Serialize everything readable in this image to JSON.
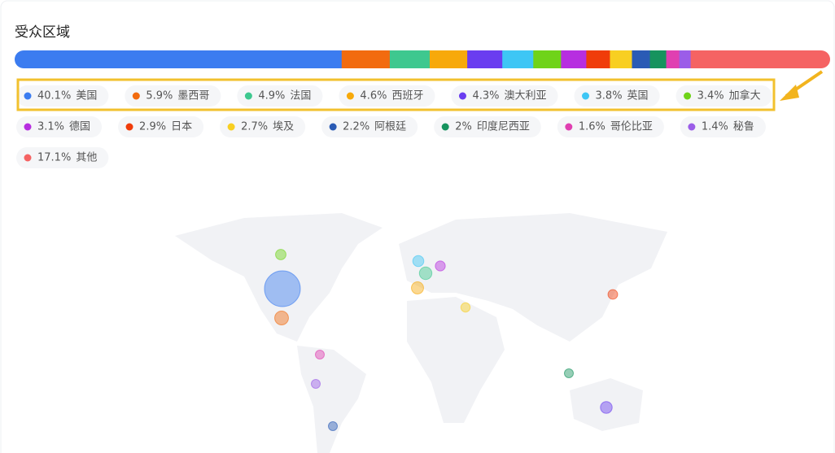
{
  "chart_data": {
    "type": "bar",
    "title": "受众区域",
    "categories": [
      "美国",
      "墨西哥",
      "法国",
      "西班牙",
      "澳大利亚",
      "英国",
      "加拿大",
      "德国",
      "日本",
      "埃及",
      "阿根廷",
      "印度尼西亚",
      "哥伦比亚",
      "秘鲁",
      "其他"
    ],
    "values": [
      40.1,
      5.9,
      4.9,
      4.6,
      4.3,
      3.8,
      3.4,
      3.1,
      2.9,
      2.7,
      2.2,
      2,
      1.6,
      1.4,
      17.1
    ],
    "value_labels": [
      "40.1%",
      "5.9%",
      "4.9%",
      "4.6%",
      "4.3%",
      "3.8%",
      "3.4%",
      "3.1%",
      "2.9%",
      "2.7%",
      "2.2%",
      "2%",
      "1.6%",
      "1.4%",
      "17.1%"
    ],
    "colors": [
      "#3b7cf0",
      "#f26b0f",
      "#3ec88f",
      "#f7a90a",
      "#6a3df0",
      "#3ec6f5",
      "#6fd319",
      "#b72ee0",
      "#f03c0a",
      "#f8cf22",
      "#2a5bb5",
      "#16935e",
      "#e03fb1",
      "#9b5de8",
      "#f56363"
    ]
  }
}
